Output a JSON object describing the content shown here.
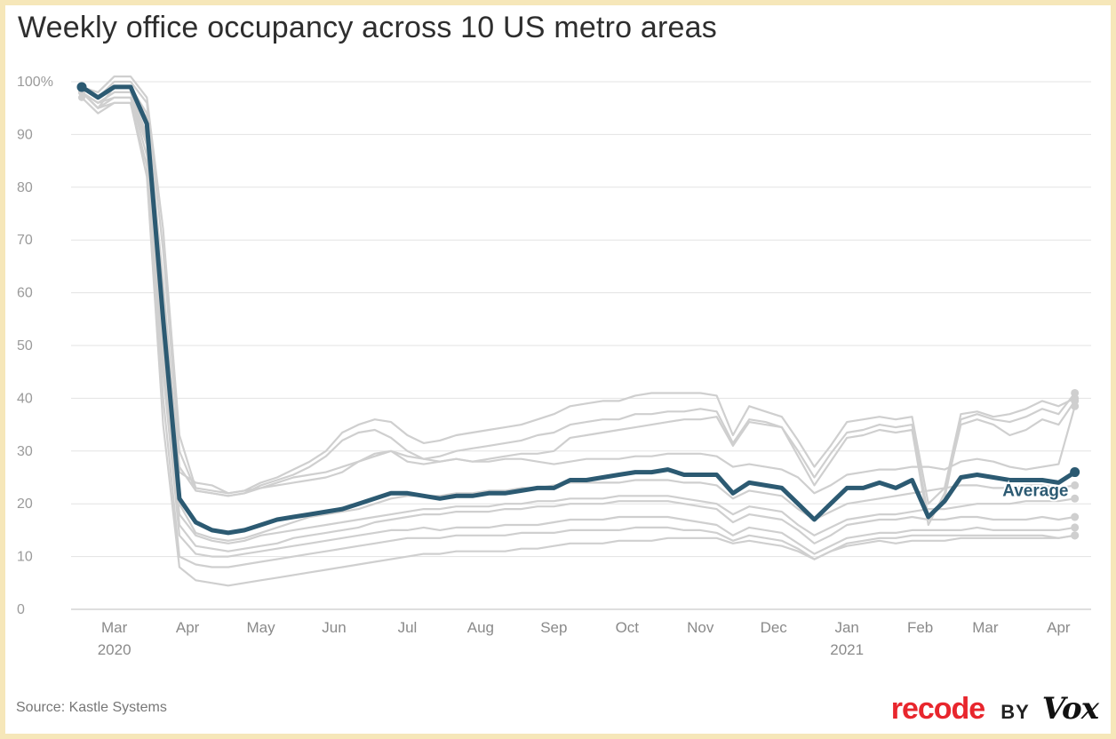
{
  "title": "Weekly office occupancy across 10 US metro areas",
  "source": "Source: Kastle Systems",
  "brand": {
    "recode": "recode",
    "by": "BY",
    "vox": "Vox",
    "recode_color": "#e8262d"
  },
  "colors": {
    "average": "#2c5a72",
    "metro": "#cfcfcf",
    "grid": "#e3e3e3",
    "axis_text": "#9a9a9a"
  },
  "chart_data": {
    "type": "line",
    "title": "Weekly office occupancy across 10 US metro areas",
    "xlabel": "",
    "ylabel": "",
    "ylim": [
      0,
      100
    ],
    "y_ticks": [
      {
        "value": 100,
        "label": "100%"
      },
      {
        "value": 90,
        "label": "90"
      },
      {
        "value": 80,
        "label": "80"
      },
      {
        "value": 70,
        "label": "70"
      },
      {
        "value": 60,
        "label": "60"
      },
      {
        "value": 50,
        "label": "50"
      },
      {
        "value": 40,
        "label": "40"
      },
      {
        "value": 30,
        "label": "30"
      },
      {
        "value": 20,
        "label": "20"
      },
      {
        "value": 10,
        "label": "10"
      },
      {
        "value": 0,
        "label": "0"
      }
    ],
    "x_ticks": [
      {
        "week": 2,
        "label": "Mar",
        "sublabel": "2020"
      },
      {
        "week": 6.5,
        "label": "Apr",
        "sublabel": ""
      },
      {
        "week": 11,
        "label": "May",
        "sublabel": ""
      },
      {
        "week": 15.5,
        "label": "Jun",
        "sublabel": ""
      },
      {
        "week": 20,
        "label": "Jul",
        "sublabel": ""
      },
      {
        "week": 24.5,
        "label": "Aug",
        "sublabel": ""
      },
      {
        "week": 29,
        "label": "Sep",
        "sublabel": ""
      },
      {
        "week": 33.5,
        "label": "Oct",
        "sublabel": ""
      },
      {
        "week": 38,
        "label": "Nov",
        "sublabel": ""
      },
      {
        "week": 42.5,
        "label": "Dec",
        "sublabel": ""
      },
      {
        "week": 47,
        "label": "Jan",
        "sublabel": "2021"
      },
      {
        "week": 51.5,
        "label": "Feb",
        "sublabel": ""
      },
      {
        "week": 55.5,
        "label": "Mar",
        "sublabel": ""
      },
      {
        "week": 60,
        "label": "Apr",
        "sublabel": ""
      }
    ],
    "x_range": [
      0,
      62
    ],
    "average_label": "Average",
    "series": [
      {
        "name": "Average",
        "highlight": true,
        "values": [
          99,
          97,
          99,
          99,
          92,
          55,
          21,
          16.5,
          15,
          14.5,
          15,
          16,
          17,
          17.5,
          18,
          18.5,
          19,
          20,
          21,
          22,
          22,
          21.5,
          21,
          21.5,
          21.5,
          22,
          22,
          22.5,
          23,
          23,
          24.5,
          24.5,
          25,
          25.5,
          26,
          26,
          26.5,
          25.5,
          25.5,
          25.5,
          22,
          24,
          23.5,
          23,
          20,
          17,
          20,
          23,
          23,
          24,
          23,
          24.5,
          17.5,
          20.5,
          25,
          25.5,
          25,
          24.5,
          24.5,
          24.5,
          24,
          26
        ]
      },
      {
        "values": [
          99,
          98,
          101,
          101,
          97,
          72,
          33,
          23,
          22.5,
          22,
          22.5,
          24,
          25,
          26.5,
          28,
          30,
          33.5,
          35,
          36,
          35.5,
          33,
          31.5,
          32,
          33,
          33.5,
          34,
          34.5,
          35,
          36,
          37,
          38.5,
          39,
          39.5,
          39.5,
          40.5,
          41,
          41,
          41,
          41,
          40.5,
          33,
          38.5,
          37.5,
          36.5,
          32,
          27,
          31,
          35.5,
          36,
          36.5,
          36,
          36.5,
          20,
          23,
          37,
          37.5,
          36.5,
          37,
          38,
          39.5,
          38.5,
          40
        ]
      },
      {
        "values": [
          99,
          97,
          100,
          100,
          96,
          68,
          30,
          22.5,
          22,
          21.5,
          22,
          23.5,
          24.5,
          25.5,
          27,
          29,
          32,
          33.5,
          34,
          32.5,
          30,
          28.5,
          29,
          30,
          30.5,
          31,
          31.5,
          32,
          33,
          33.5,
          35,
          35.5,
          36,
          36,
          37,
          37,
          37.5,
          37.5,
          38,
          37.5,
          31.5,
          36,
          35.5,
          34.5,
          30,
          25,
          29.5,
          33.5,
          34,
          35,
          34.5,
          35,
          17.5,
          21,
          36,
          37,
          36,
          35.5,
          36.5,
          38,
          37,
          41
        ]
      },
      {
        "values": [
          98,
          95,
          99,
          99,
          93,
          60,
          27,
          22.5,
          22,
          21.5,
          22,
          23,
          24,
          25,
          25.5,
          26,
          27,
          28,
          29.5,
          30,
          28,
          27.5,
          28,
          28.5,
          28,
          28.5,
          29,
          29.5,
          29.5,
          30,
          32.5,
          33,
          33.5,
          34,
          34.5,
          35,
          35.5,
          36,
          36,
          36.5,
          31,
          35.5,
          35,
          34.5,
          29,
          23.5,
          28,
          32.5,
          33,
          34,
          33.5,
          34,
          16,
          22,
          35,
          36,
          35,
          33,
          34,
          36,
          35,
          39.5
        ]
      },
      {
        "values": [
          99,
          97,
          99,
          99,
          94,
          62,
          26,
          24,
          23.5,
          22,
          22.5,
          23,
          23.5,
          24,
          24.5,
          25,
          26,
          28,
          29,
          30,
          29,
          28.5,
          28,
          28.5,
          28,
          28,
          28.5,
          28.5,
          28,
          27.5,
          28,
          28.5,
          28.5,
          28.5,
          29,
          29,
          29.5,
          29.5,
          29.5,
          29,
          27,
          27.5,
          27,
          26.5,
          25,
          22,
          23.5,
          25.5,
          26,
          26.5,
          26.5,
          27,
          27,
          26.5,
          28,
          28.5,
          28,
          27,
          26.5,
          27,
          27.5,
          38.5
        ]
      },
      {
        "values": [
          98,
          96,
          98,
          98,
          90,
          52,
          20,
          14.5,
          13.5,
          13,
          13.5,
          14.5,
          15.5,
          16.5,
          17.5,
          18,
          18.5,
          19,
          20,
          21,
          21.5,
          21.5,
          21.5,
          22,
          22,
          22.5,
          22.5,
          23,
          23,
          23.5,
          24,
          24,
          24,
          24,
          24.5,
          24.5,
          24.5,
          24,
          24,
          23.5,
          21,
          22.5,
          22,
          21.5,
          19,
          17,
          18.5,
          20,
          20.5,
          21,
          21.5,
          22,
          22.5,
          23,
          23.5,
          23.5,
          23,
          23,
          23.5,
          23.5,
          23,
          23.5
        ]
      },
      {
        "values": [
          98,
          96,
          98,
          98,
          89,
          50,
          18,
          14,
          13,
          12.5,
          13,
          14,
          14.5,
          15,
          15.5,
          16,
          16.5,
          17,
          17.5,
          18,
          18.5,
          19,
          19,
          19.5,
          19.5,
          19.5,
          20,
          20,
          20.5,
          20.5,
          21,
          21,
          21,
          21.5,
          21.5,
          21.5,
          21.5,
          21,
          20.5,
          20,
          18,
          19.5,
          19,
          18.5,
          16,
          14,
          15.5,
          17,
          17.5,
          18,
          18,
          18.5,
          19,
          19,
          19.5,
          20,
          20,
          20,
          20.5,
          20.5,
          20.5,
          21
        ]
      },
      {
        "values": [
          98,
          96,
          97,
          97,
          88,
          48,
          16,
          12,
          11.5,
          11,
          11.5,
          12,
          12.5,
          13.5,
          14,
          14.5,
          15,
          15.5,
          16.5,
          17,
          17.5,
          18,
          18,
          18.5,
          18.5,
          18.5,
          19,
          19,
          19.5,
          19.5,
          20,
          20,
          20,
          20.5,
          20.5,
          20.5,
          20.5,
          20,
          19.5,
          19,
          16.5,
          18,
          17.5,
          17,
          15,
          12.5,
          14,
          16,
          16.5,
          17,
          17,
          17.5,
          17,
          17,
          17.5,
          17.5,
          17,
          17,
          17,
          17.5,
          17,
          17.5
        ]
      },
      {
        "values": [
          98,
          95,
          97,
          97,
          86,
          45,
          14,
          10.5,
          10,
          10,
          10.5,
          11,
          11.5,
          12,
          12.5,
          13,
          13.5,
          14,
          14.5,
          15,
          15,
          15.5,
          15,
          15.5,
          15.5,
          15.5,
          16,
          16,
          16,
          16.5,
          17,
          17,
          17,
          17.5,
          17.5,
          17.5,
          17.5,
          17,
          16.5,
          16,
          14,
          15.5,
          15,
          14.5,
          12.5,
          10.5,
          12,
          13.5,
          14,
          14.5,
          14.5,
          15,
          15,
          15,
          15,
          15.5,
          15,
          15,
          15,
          15,
          15,
          15.5
        ]
      },
      {
        "values": [
          98,
          95,
          96,
          96,
          84,
          40,
          10,
          8.5,
          8,
          8,
          8.5,
          9,
          9.5,
          10,
          10.5,
          11,
          11.5,
          12,
          12.5,
          13,
          13.5,
          13.5,
          13.5,
          14,
          14,
          14,
          14,
          14.5,
          14.5,
          14.5,
          15,
          15,
          15,
          15,
          15.5,
          15.5,
          15.5,
          15,
          15,
          14.5,
          13,
          14,
          13.5,
          13,
          11.5,
          9.5,
          11,
          12.5,
          13,
          13.5,
          13.5,
          14,
          14,
          14,
          14,
          14,
          14,
          14,
          14,
          14,
          13.5,
          14
        ]
      },
      {
        "values": [
          97,
          94,
          96,
          96,
          82,
          35,
          8,
          5.5,
          5,
          4.5,
          5,
          5.5,
          6,
          6.5,
          7,
          7.5,
          8,
          8.5,
          9,
          9.5,
          10,
          10.5,
          10.5,
          11,
          11,
          11,
          11,
          11.5,
          11.5,
          12,
          12.5,
          12.5,
          12.5,
          13,
          13,
          13,
          13.5,
          13.5,
          13.5,
          13.5,
          12.5,
          13,
          12.5,
          12,
          11,
          9.5,
          11,
          12,
          12.5,
          13,
          12.5,
          13,
          13,
          13,
          13.5,
          13.5,
          13.5,
          13.5,
          13.5,
          13.5,
          13.5,
          14
        ]
      }
    ]
  }
}
